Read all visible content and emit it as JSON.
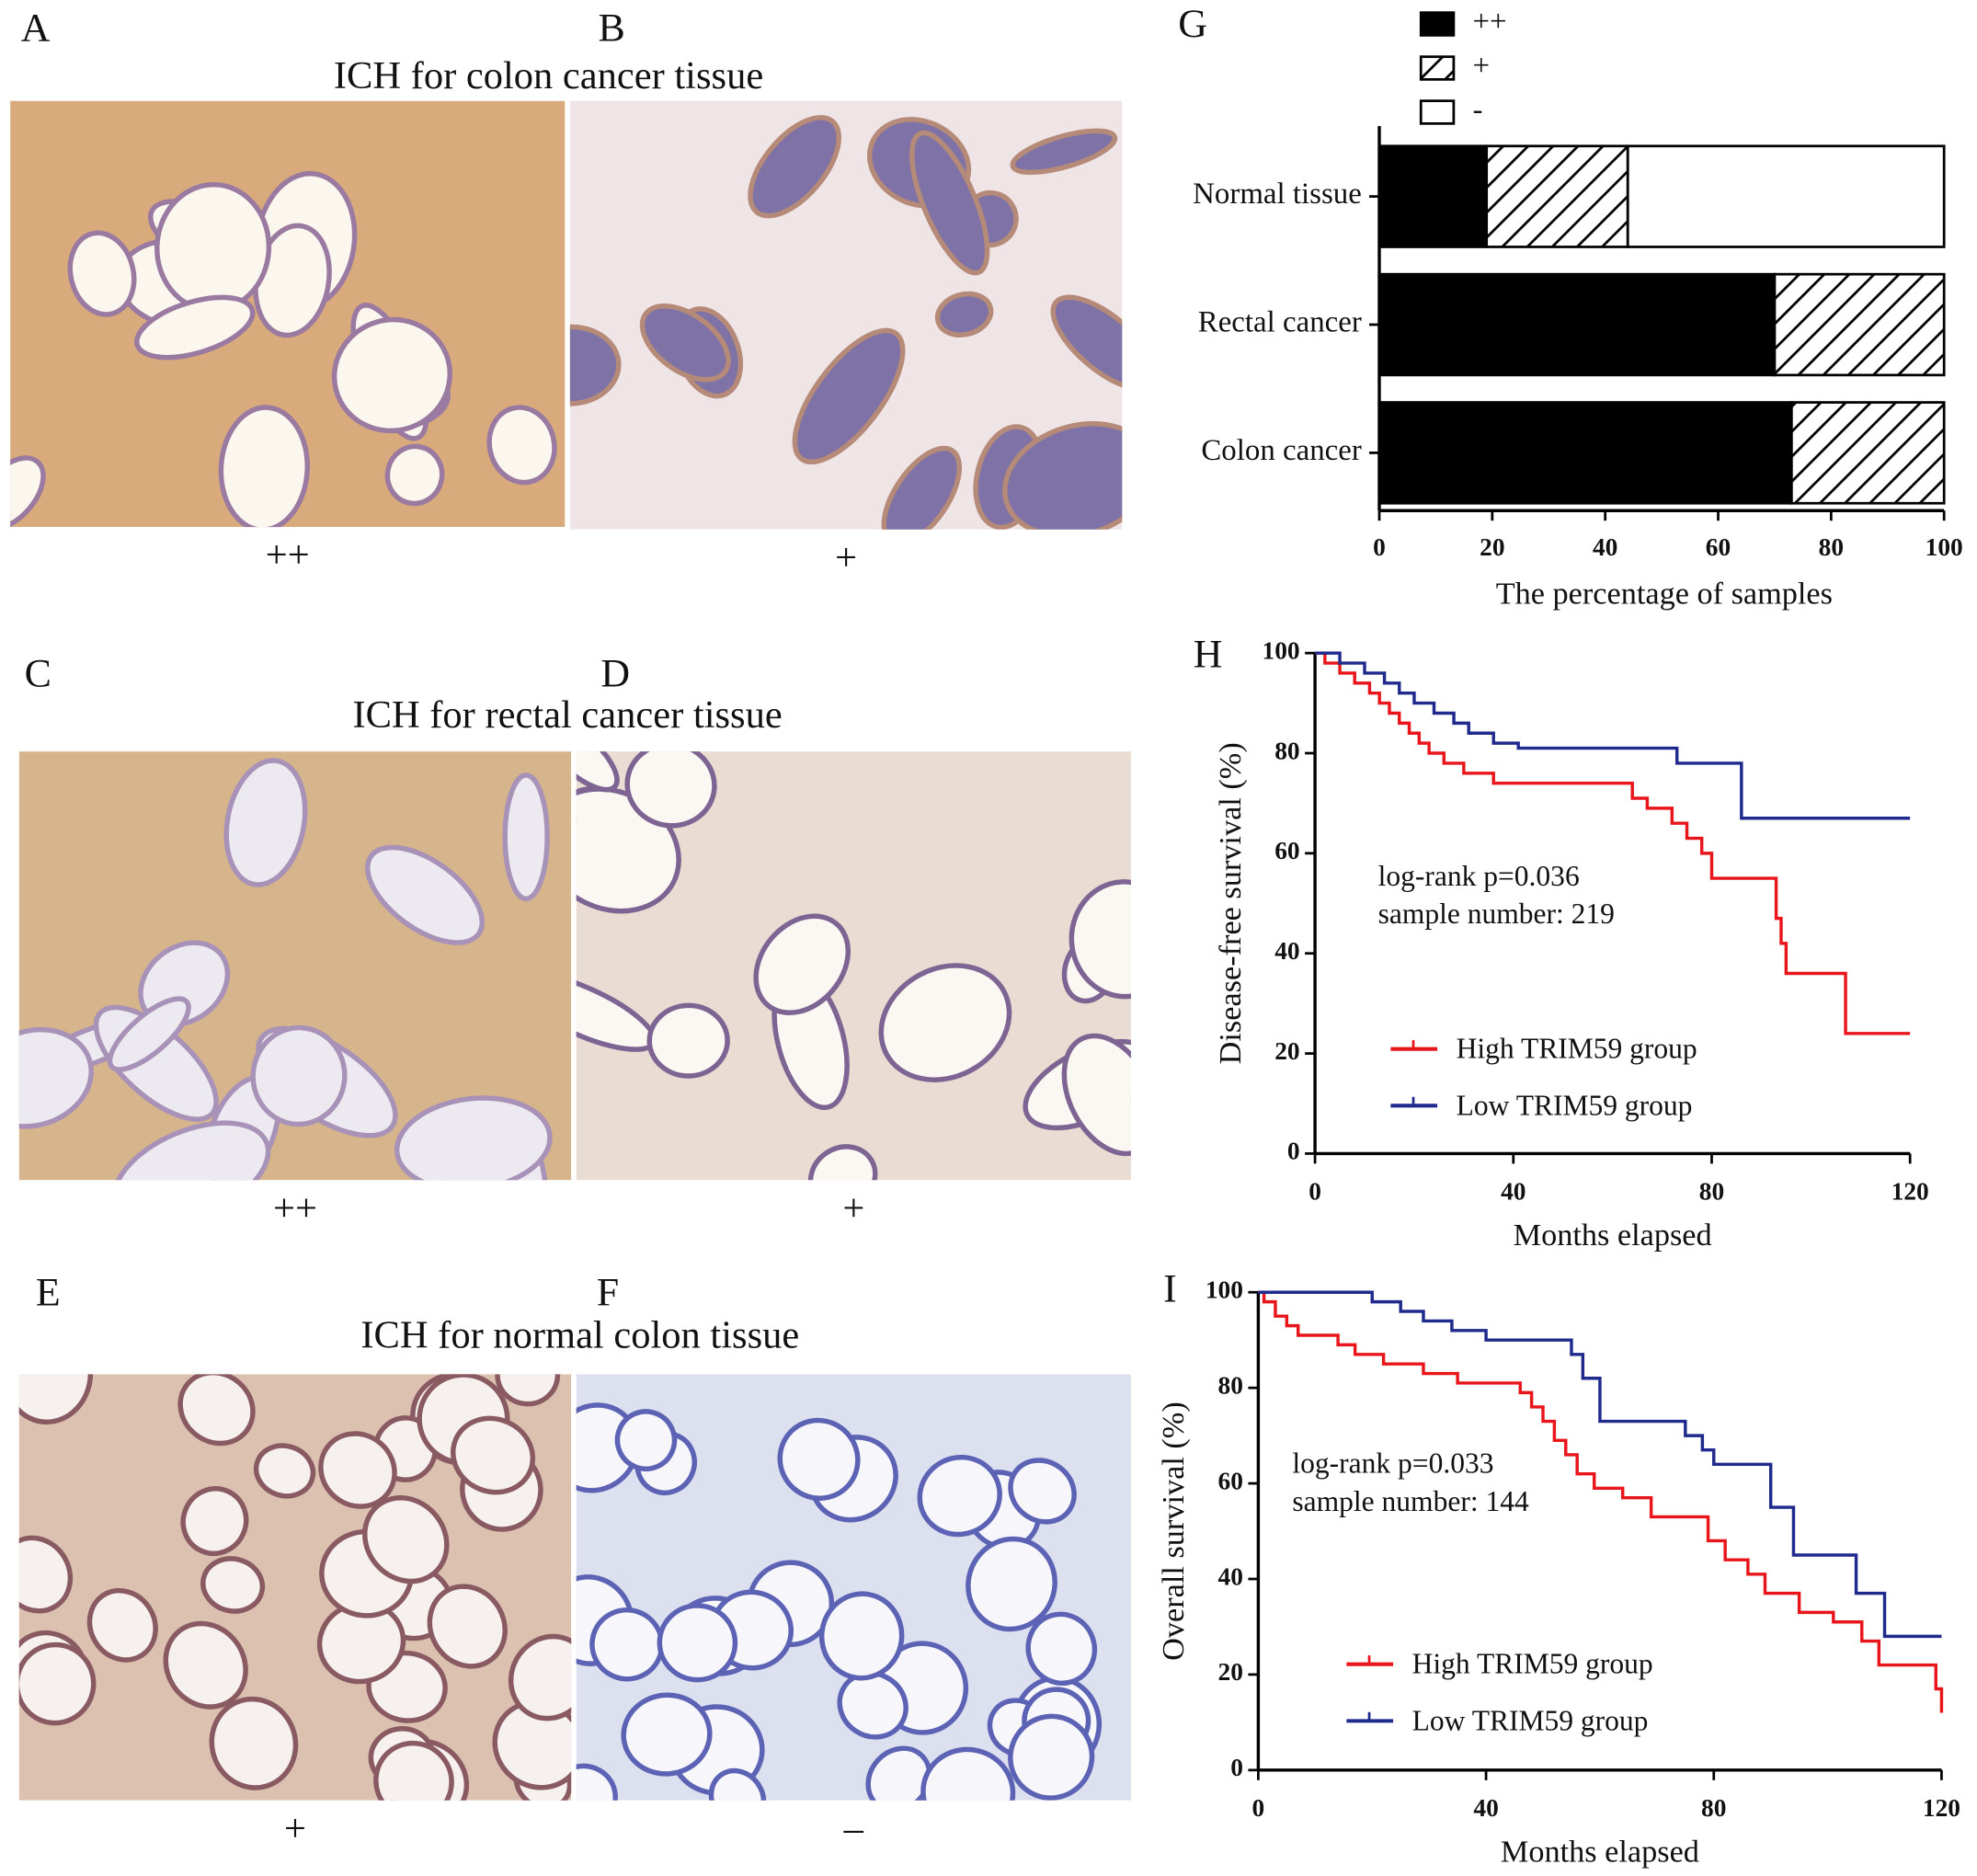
{
  "image_panels": [
    {
      "label": "A",
      "grade": "++"
    },
    {
      "label": "B",
      "grade": "+"
    },
    {
      "label": "C",
      "grade": "++"
    },
    {
      "label": "D",
      "grade": "+"
    },
    {
      "label": "E",
      "grade": "+"
    },
    {
      "label": "F",
      "grade": "–"
    }
  ],
  "section_titles": [
    "ICH for colon cancer tissue",
    "ICH for rectal cancer tissue",
    "ICH for normal colon tissue"
  ],
  "chart_data": [
    {
      "type": "bar",
      "orientation": "horizontal",
      "stacked": true,
      "label": "G",
      "x_label": "The percentage of samples",
      "categories": [
        "Normal tissue",
        "Rectal cancer",
        "Colon cancer"
      ],
      "series": [
        {
          "name": "++",
          "color": "#000000",
          "values": [
            19,
            70,
            73
          ]
        },
        {
          "name": "+",
          "color": "#000000",
          "hatch": true,
          "values": [
            25,
            30,
            27
          ]
        },
        {
          "name": "-",
          "color": "#ffffff",
          "values": [
            56,
            0,
            0
          ]
        }
      ],
      "xlim": [
        0,
        100
      ],
      "xticks": [
        0,
        20,
        40,
        60,
        80,
        100
      ]
    },
    {
      "type": "step",
      "label": "H",
      "x_label": "Months elapsed",
      "y_label": "Disease-free survival (%)",
      "annotations": [
        "log-rank p=0.036",
        "sample number: 219"
      ],
      "series": [
        {
          "name": "High TRIM59 group",
          "color": "#e8151b",
          "x": [
            0,
            2,
            5,
            8,
            11,
            13,
            15,
            17,
            19,
            21,
            23,
            26,
            30,
            36,
            64,
            67,
            72,
            75,
            78,
            80,
            93,
            94,
            95,
            107,
            120
          ],
          "values": [
            100,
            98,
            96,
            94,
            92,
            90,
            88,
            86,
            84,
            82,
            80,
            78,
            76,
            74,
            71,
            69,
            66,
            63,
            60,
            55,
            47,
            42,
            36,
            24,
            24
          ]
        },
        {
          "name": "Low TRIM59 group",
          "color": "#1f2a8c",
          "x": [
            0,
            5,
            10,
            14,
            17,
            20,
            24,
            28,
            31,
            36,
            41,
            73,
            86,
            120
          ],
          "values": [
            100,
            98,
            96,
            94,
            92,
            90,
            88,
            86,
            84,
            82,
            81,
            78,
            67,
            67
          ]
        }
      ],
      "xlim": [
        0,
        120
      ],
      "xticks": [
        0,
        40,
        80,
        120
      ],
      "ylim": [
        0,
        100
      ],
      "yticks": [
        0,
        20,
        40,
        60,
        80,
        100
      ]
    },
    {
      "type": "step",
      "label": "I",
      "x_label": "Months elapsed",
      "y_label": "Overall survival (%)",
      "annotations": [
        "log-rank p=0.033",
        "sample number: 144"
      ],
      "series": [
        {
          "name": "High TRIM59 group",
          "color": "#e8151b",
          "x": [
            0,
            1,
            3,
            5,
            7,
            14,
            17,
            22,
            29,
            35,
            46,
            48,
            50,
            52,
            54,
            56,
            59,
            64,
            69,
            79,
            82,
            86,
            89,
            95,
            101,
            106,
            109,
            119,
            120
          ],
          "values": [
            100,
            98,
            95,
            93,
            91,
            89,
            87,
            85,
            83,
            81,
            79,
            76,
            73,
            69,
            66,
            62,
            59,
            57,
            53,
            48,
            44,
            41,
            37,
            33,
            31,
            27,
            22,
            17,
            12
          ]
        },
        {
          "name": "Low TRIM59 group",
          "color": "#1f2a8c",
          "x": [
            0,
            20,
            25,
            29,
            34,
            40,
            55,
            57,
            60,
            75,
            78,
            80,
            90,
            94,
            105,
            110,
            120
          ],
          "values": [
            100,
            98,
            96,
            94,
            92,
            90,
            87,
            82,
            73,
            70,
            67,
            64,
            55,
            45,
            37,
            28,
            28
          ]
        }
      ],
      "xlim": [
        0,
        120
      ],
      "xticks": [
        0,
        40,
        80,
        120
      ],
      "ylim": [
        0,
        100
      ],
      "yticks": [
        0,
        20,
        40,
        60,
        80,
        100
      ]
    }
  ]
}
